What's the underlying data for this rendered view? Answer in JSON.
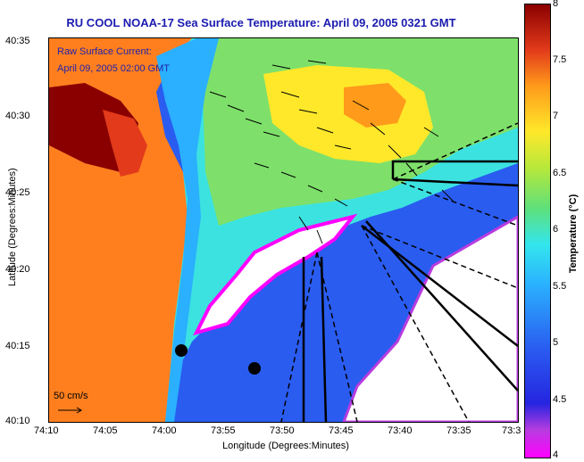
{
  "title": "RU COOL  NOAA-17  Sea Surface Temperature:  April 09, 2005 0321 GMT",
  "legend": {
    "line1": "Raw Surface Current:",
    "line2": "April 09, 2005 02:00 GMT"
  },
  "scale": {
    "label": "50 cm/s"
  },
  "axes": {
    "xlabel": "Longitude (Degrees:Minutes)",
    "ylabel": "Latitude (Degrees:Minutes)",
    "xticks": [
      "74:10",
      "74:05",
      "74:00",
      "73:55",
      "73:50",
      "73:45",
      "73:40",
      "73:35",
      "73:3"
    ],
    "yticks": [
      "40:35",
      "40:30",
      "40:25",
      "40:20",
      "40:15",
      "40:10"
    ]
  },
  "colorbar": {
    "label": "Temperature (°C)",
    "ticks": [
      "8",
      "7.5",
      "7",
      "6.5",
      "6",
      "5.5",
      "5",
      "4.5",
      "4"
    ],
    "range": [
      4,
      8
    ]
  },
  "colors": {
    "land": "#ff7f1f",
    "warm": "#c01010",
    "shelf": "#33e6ee",
    "offshore": "#2a5cf0",
    "cloud": "#ffffff",
    "title": "#1b1bb0"
  }
}
